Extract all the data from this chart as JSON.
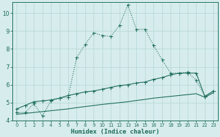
{
  "title": "",
  "xlabel": "Humidex (Indice chaleur)",
  "ylabel": "",
  "bg_color": "#d7ecec",
  "grid_color": "#b8d8d8",
  "line_color": "#1a6b5a",
  "xlim": [
    -0.5,
    23.5
  ],
  "ylim": [
    4.0,
    10.6
  ],
  "yticks": [
    4,
    5,
    6,
    7,
    8,
    9,
    10
  ],
  "xticks": [
    0,
    1,
    2,
    3,
    4,
    5,
    6,
    7,
    8,
    9,
    10,
    11,
    12,
    13,
    14,
    15,
    16,
    17,
    18,
    19,
    20,
    21,
    22,
    23
  ],
  "line1_x": [
    0,
    1,
    2,
    3,
    4,
    5,
    6,
    7,
    8,
    9,
    10,
    11,
    12,
    13,
    14,
    15,
    16,
    17,
    18,
    19,
    20,
    21,
    22,
    23
  ],
  "line1_y": [
    4.45,
    4.45,
    4.95,
    4.25,
    5.1,
    5.25,
    5.3,
    7.5,
    8.25,
    8.9,
    8.75,
    8.7,
    9.3,
    10.45,
    9.1,
    9.1,
    8.2,
    7.4,
    6.65,
    6.65,
    6.7,
    6.25,
    5.35,
    5.65
  ],
  "line2_x": [
    0,
    1,
    2,
    3,
    4,
    5,
    6,
    7,
    8,
    9,
    10,
    11,
    12,
    13,
    14,
    15,
    16,
    17,
    18,
    19,
    20,
    21,
    22,
    23
  ],
  "line2_y": [
    4.65,
    4.85,
    5.05,
    5.1,
    5.15,
    5.25,
    5.4,
    5.5,
    5.6,
    5.65,
    5.75,
    5.85,
    5.95,
    6.0,
    6.1,
    6.15,
    6.3,
    6.4,
    6.55,
    6.65,
    6.65,
    6.65,
    5.35,
    5.65
  ],
  "line3_x": [
    0,
    1,
    2,
    3,
    4,
    5,
    6,
    7,
    8,
    9,
    10,
    11,
    12,
    13,
    14,
    15,
    16,
    17,
    18,
    19,
    20,
    21,
    22,
    23
  ],
  "line3_y": [
    4.35,
    4.4,
    4.45,
    4.5,
    4.55,
    4.6,
    4.65,
    4.72,
    4.78,
    4.84,
    4.9,
    4.95,
    5.0,
    5.05,
    5.12,
    5.18,
    5.25,
    5.3,
    5.35,
    5.4,
    5.45,
    5.5,
    5.3,
    5.55
  ]
}
